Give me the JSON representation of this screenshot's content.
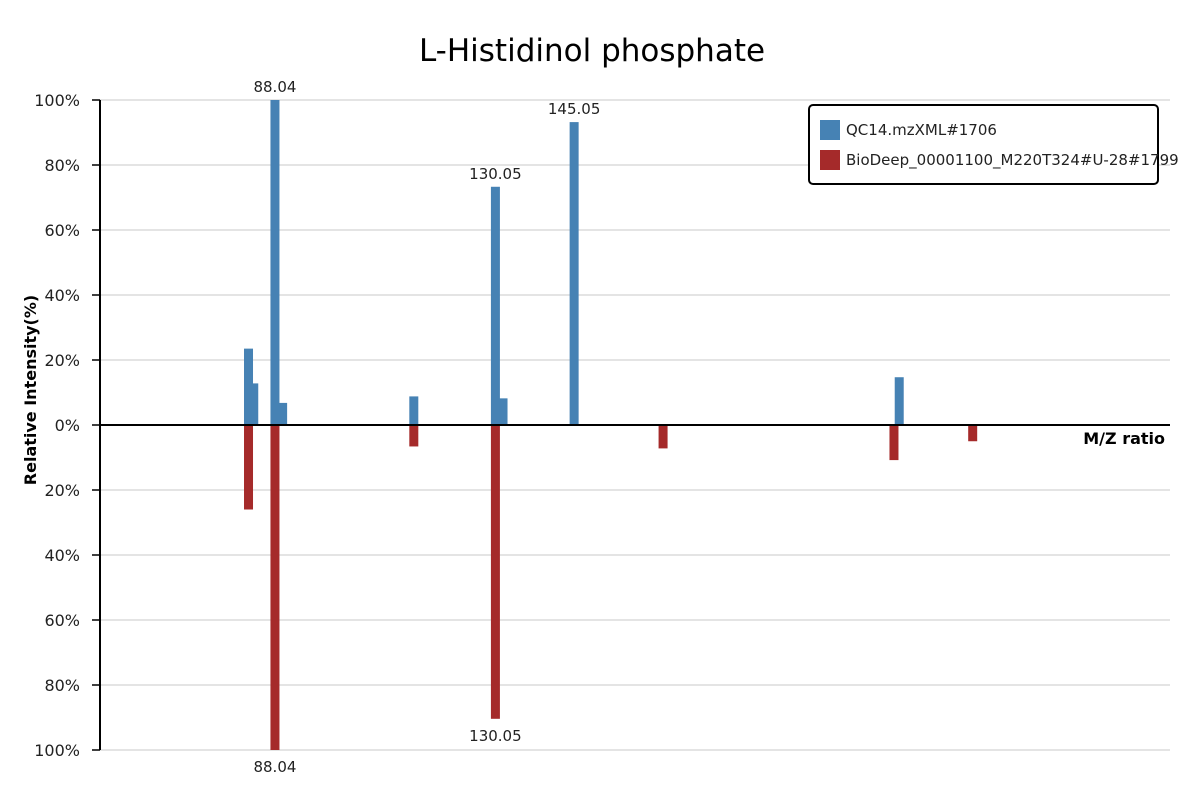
{
  "chart_data": {
    "type": "bar",
    "title": "L-Histidinol phosphate",
    "xlabel": "M/Z ratio",
    "ylabel": "Relative Intensity(%)",
    "y_ticks_top": [
      "100%",
      "80%",
      "60%",
      "40%",
      "20%",
      "0%"
    ],
    "y_ticks_bottom": [
      "20%",
      "40%",
      "60%",
      "80%",
      "100%"
    ],
    "ylim": [
      -100,
      100
    ],
    "grid": true,
    "legend_position": "top-right",
    "series": [
      {
        "name": "QC14.mzXML#1706",
        "color": "#4682b4",
        "direction": "up",
        "peaks": [
          {
            "mz": 83.0,
            "intensity": 23.5
          },
          {
            "mz": 84.0,
            "intensity": 12.8
          },
          {
            "mz": 88.04,
            "intensity": 100,
            "label": "88.04"
          },
          {
            "mz": 89.5,
            "intensity": 6.8
          },
          {
            "mz": 114.5,
            "intensity": 8.8
          },
          {
            "mz": 130.05,
            "intensity": 73.3,
            "label": "130.05"
          },
          {
            "mz": 131.5,
            "intensity": 8.2
          },
          {
            "mz": 145.05,
            "intensity": 93.2,
            "label": "145.05"
          },
          {
            "mz": 207.0,
            "intensity": 14.7
          }
        ]
      },
      {
        "name": "BioDeep_00001100_M220T324#U-28#1799",
        "color": "#a52a2a",
        "direction": "down",
        "peaks": [
          {
            "mz": 83.0,
            "intensity": 26.0
          },
          {
            "mz": 88.04,
            "intensity": 100,
            "label": "88.04"
          },
          {
            "mz": 114.5,
            "intensity": 6.6
          },
          {
            "mz": 130.05,
            "intensity": 90.4,
            "label": "130.05"
          },
          {
            "mz": 162.0,
            "intensity": 7.2
          },
          {
            "mz": 206.0,
            "intensity": 10.8
          },
          {
            "mz": 221.0,
            "intensity": 5.0
          }
        ]
      }
    ]
  }
}
